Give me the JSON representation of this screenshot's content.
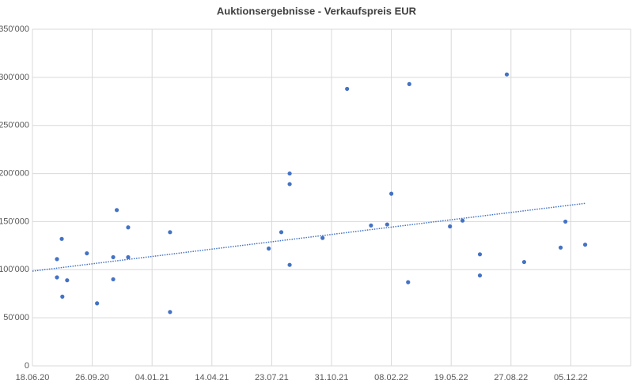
{
  "chart_data": {
    "type": "scatter",
    "title": "Auktionsergebnisse - Verkaufspreis EUR",
    "xlim": [
      "2020-06-18",
      "2023-03-15"
    ],
    "xticks": [
      {
        "value": "2020-06-18",
        "label": "18.06.20"
      },
      {
        "value": "2020-09-26",
        "label": "26.09.20"
      },
      {
        "value": "2021-01-04",
        "label": "04.01.21"
      },
      {
        "value": "2021-04-14",
        "label": "14.04.21"
      },
      {
        "value": "2021-07-23",
        "label": "23.07.21"
      },
      {
        "value": "2021-10-31",
        "label": "31.10.21"
      },
      {
        "value": "2022-02-08",
        "label": "08.02.22"
      },
      {
        "value": "2022-05-19",
        "label": "19.05.22"
      },
      {
        "value": "2022-08-27",
        "label": "27.08.22"
      },
      {
        "value": "2022-12-05",
        "label": "05.12.22"
      }
    ],
    "ylim": [
      0,
      350000
    ],
    "yticks": [
      0,
      {
        "value": 50000,
        "label": "50'000"
      },
      {
        "value": 100000,
        "label": "100'000"
      },
      {
        "value": 150000,
        "label": "150'000"
      },
      {
        "value": 200000,
        "label": "200'000"
      },
      {
        "value": 250000,
        "label": "250'000"
      },
      {
        "value": 300000,
        "label": "300'000"
      },
      {
        "value": 350000,
        "label": "350'000"
      }
    ],
    "grid": true,
    "color": "#4472c4",
    "x": [
      "2020-07-29",
      "2020-08-06",
      "2020-07-29",
      "2020-08-07",
      "2020-08-15",
      "2020-09-17",
      "2020-10-04",
      "2020-10-31",
      "2020-10-31",
      "2020-11-06",
      "2020-11-25",
      "2020-11-25",
      "2021-02-03",
      "2021-02-03",
      "2021-07-18",
      "2021-08-08",
      "2021-08-22",
      "2021-08-22",
      "2021-08-22",
      "2021-10-16",
      "2021-11-26",
      "2022-01-05",
      "2022-02-01",
      "2022-02-08",
      "2022-03-08",
      "2022-03-10",
      "2022-05-17",
      "2022-06-07",
      "2022-07-06",
      "2022-07-06",
      "2022-08-20",
      "2022-09-18",
      "2022-11-18",
      "2022-11-26",
      "2022-12-29"
    ],
    "values": [
      111000,
      132000,
      92000,
      72000,
      89000,
      117000,
      65000,
      113000,
      90000,
      162000,
      144000,
      113000,
      139000,
      56000,
      122000,
      139000,
      200000,
      189000,
      105000,
      133000,
      288000,
      146000,
      147000,
      179000,
      87000,
      293000,
      145000,
      151000,
      116000,
      94000,
      303000,
      108000,
      123000,
      150000,
      126000
    ],
    "trendline": {
      "x": [
        "2020-06-18",
        "2022-12-29"
      ],
      "values": [
        98500,
        169000
      ]
    }
  }
}
